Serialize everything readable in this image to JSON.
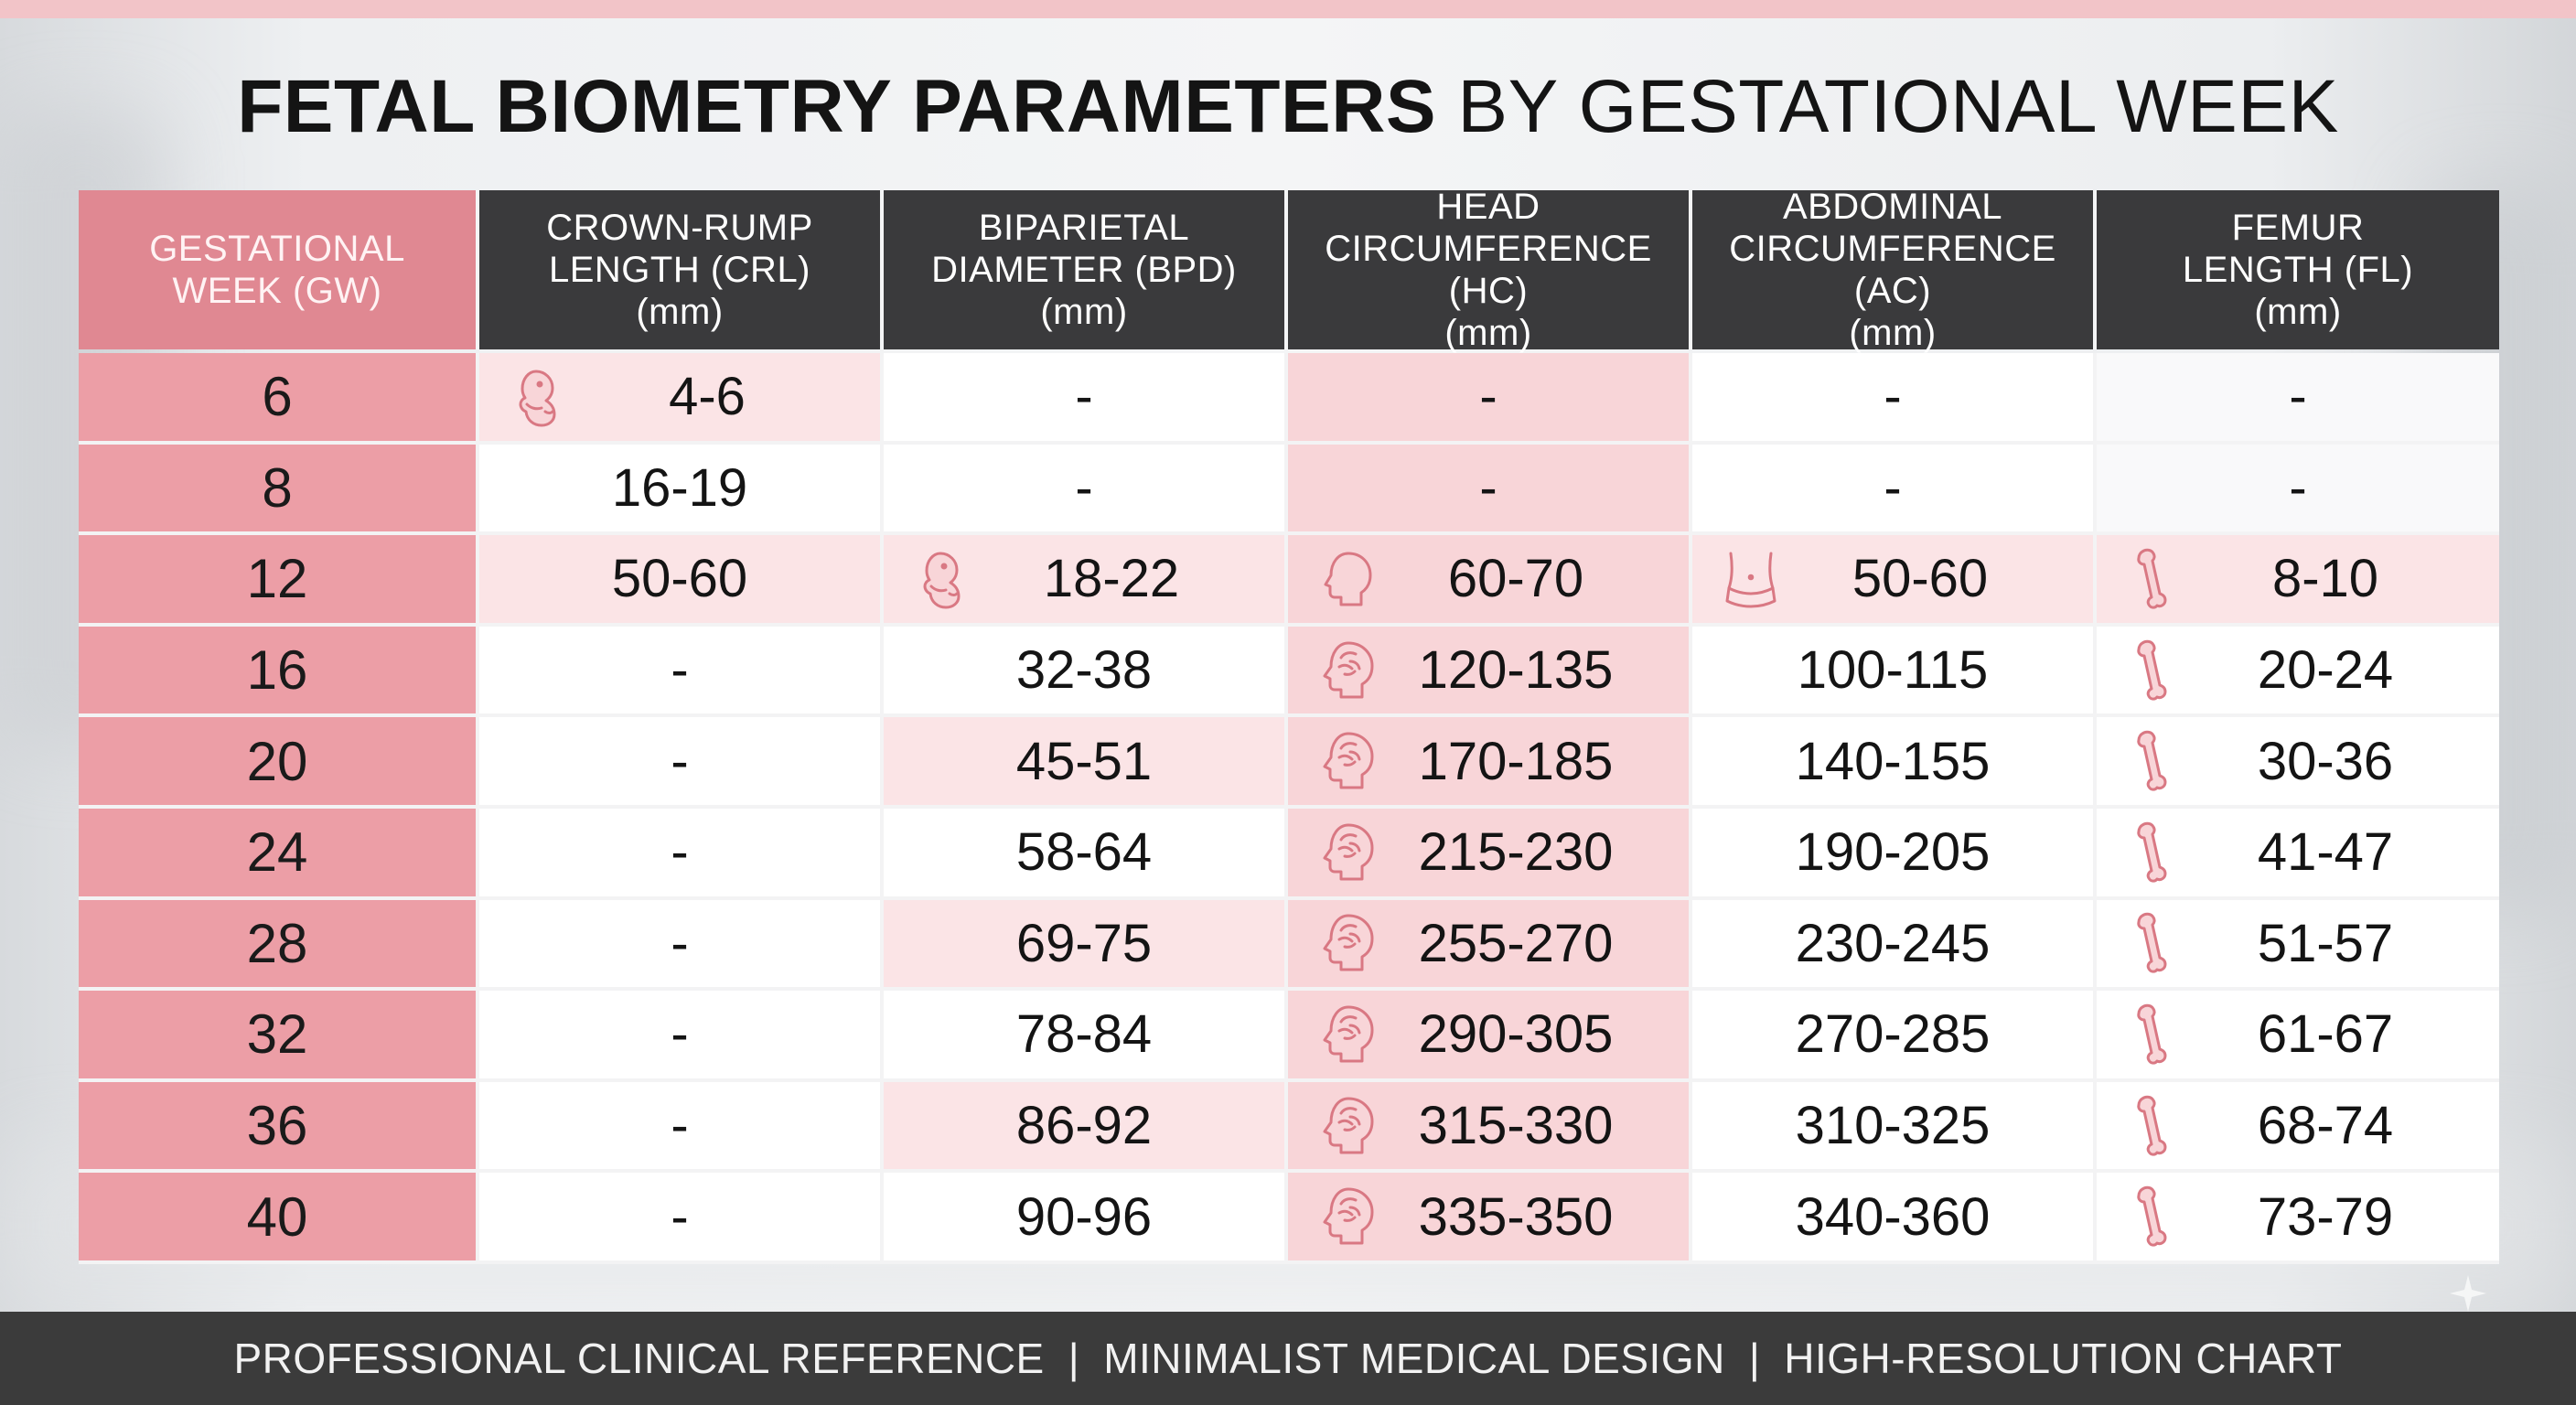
{
  "title": {
    "bold": "FETAL BIOMETRY PARAMETERS",
    "regular": "BY GESTATIONAL WEEK"
  },
  "headers": [
    "GESTATIONAL\nWEEK (GW)",
    "CROWN-RUMP\nLENGTH (CRL)\n(mm)",
    "BIPARIETAL\nDIAMETER (BPD)\n(mm)",
    "HEAD\nCIRCUMFERENCE (HC)\n(mm)",
    "ABDOMINAL\nCIRCUMFERENCE (AC)\n(mm)",
    "FEMUR\nLENGTH (FL)\n(mm)"
  ],
  "rows": [
    {
      "gw": "6",
      "crl": "4-6",
      "bpd": "-",
      "hc": "-",
      "ac": "-",
      "fl": "-"
    },
    {
      "gw": "8",
      "crl": "16-19",
      "bpd": "-",
      "hc": "-",
      "ac": "-",
      "fl": "-"
    },
    {
      "gw": "12",
      "crl": "50-60",
      "bpd": "18-22",
      "hc": "60-70",
      "ac": "50-60",
      "fl": "8-10"
    },
    {
      "gw": "16",
      "crl": "-",
      "bpd": "32-38",
      "hc": "120-135",
      "ac": "100-115",
      "fl": "20-24"
    },
    {
      "gw": "20",
      "crl": "-",
      "bpd": "45-51",
      "hc": "170-185",
      "ac": "140-155",
      "fl": "30-36"
    },
    {
      "gw": "24",
      "crl": "-",
      "bpd": "58-64",
      "hc": "215-230",
      "ac": "190-205",
      "fl": "41-47"
    },
    {
      "gw": "28",
      "crl": "-",
      "bpd": "69-75",
      "hc": "255-270",
      "ac": "230-245",
      "fl": "51-57"
    },
    {
      "gw": "32",
      "crl": "-",
      "bpd": "78-84",
      "hc": "290-305",
      "ac": "270-285",
      "fl": "61-67"
    },
    {
      "gw": "36",
      "crl": "-",
      "bpd": "86-92",
      "hc": "315-330",
      "ac": "310-325",
      "fl": "68-74"
    },
    {
      "gw": "40",
      "crl": "-",
      "bpd": "90-96",
      "hc": "335-350",
      "ac": "340-360",
      "fl": "73-79"
    }
  ],
  "icons": {
    "crl": "fetus-icon",
    "bpd": "fetus-icon",
    "hc_early": "head-profile-icon",
    "hc": "brain-head-icon",
    "ac": "abdomen-icon",
    "fl": "femur-bone-icon"
  },
  "footer": {
    "items": [
      "PROFESSIONAL CLINICAL REFERENCE",
      "MINIMALIST MEDICAL DESIGN",
      "HIGH-RESOLUTION CHART"
    ],
    "separator": "|"
  },
  "colors": {
    "accent_pink": "#e08892",
    "cell_pink": "#f8d5d8",
    "header_dark": "#3a3a3c",
    "footer_dark": "#3b3b3b",
    "icon_stroke": "#d97883"
  }
}
